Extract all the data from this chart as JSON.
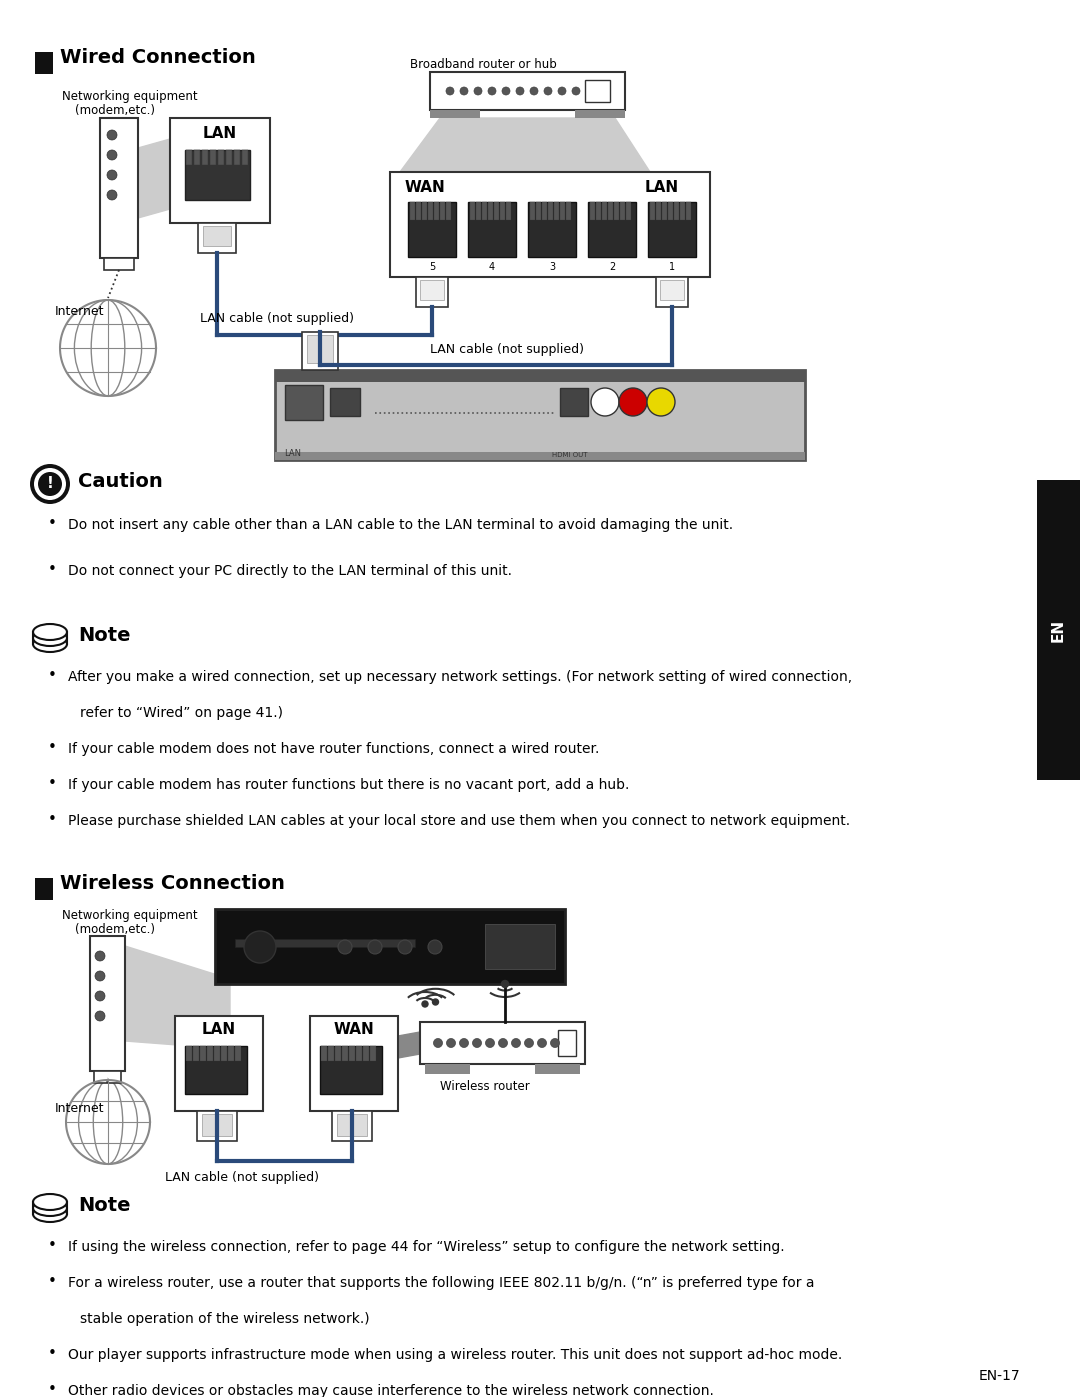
{
  "bg_color": "#ffffff",
  "page_width": 10.8,
  "page_height": 13.97,
  "dpi": 100,
  "title1": "Wired Connection",
  "title2": "Wireless Connection",
  "caution_title": "Caution",
  "note_title1": "Note",
  "note_title2": "Note",
  "caution_bullets": [
    "Do not insert any cable other than a LAN cable to the LAN terminal to avoid damaging the unit.",
    "Do not connect your PC directly to the LAN terminal of this unit."
  ],
  "note1_bullets": [
    "After you make a wired connection, set up necessary network settings. (For network setting of wired connection,",
    "    refer to “Wired” on page 41.)",
    "If your cable modem does not have router functions, connect a wired router.",
    "If your cable modem has router functions but there is no vacant port, add a hub.",
    "Please purchase shielded LAN cables at your local store and use them when you connect to network equipment."
  ],
  "note2_bullets": [
    "If using the wireless connection, refer to page 44 for “Wireless” setup to configure the network setting.",
    "For a wireless router, use a router that supports the following IEEE 802.11 b/g/n. (“n” is preferred type for a",
    "    stable operation of the wireless network.)",
    "Our player supports infrastructure mode when using a wireless router. This unit does not support ad-hoc mode.",
    "Other radio devices or obstacles may cause interference to the wireless network connection."
  ],
  "footer_text": "EN-17"
}
